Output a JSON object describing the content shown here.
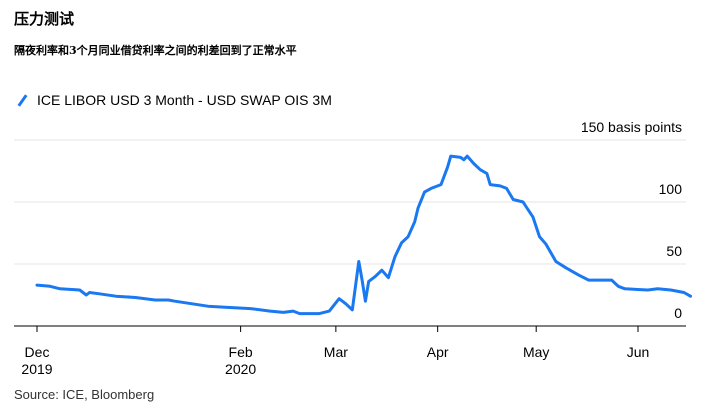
{
  "header": {
    "title": "压力测试",
    "subtitle": "隔夜利率和3个月同业借贷利率之间的利差回到了正常水平"
  },
  "legend": {
    "label": "ICE LIBOR USD 3 Month - USD SWAP OIS 3M"
  },
  "source": "Source: ICE, Bloomberg",
  "colors": {
    "series": "#1a78f0",
    "grid": "#e4e4e4",
    "axis": "#000000"
  },
  "chart_data": {
    "type": "line",
    "title": "",
    "xlabel": "",
    "ylabel": "150 basis points",
    "ylim": [
      0,
      150
    ],
    "y_ticks": [
      0,
      50,
      100,
      150
    ],
    "y_tick_labels": [
      "0",
      "50",
      "100",
      "150 basis points"
    ],
    "x_ticks": [
      {
        "date": "2019-12-01",
        "label": [
          "Dec",
          "2019"
        ]
      },
      {
        "date": "2020-02-01",
        "label": [
          "Feb",
          "2020"
        ]
      },
      {
        "date": "2020-03-01",
        "label": [
          "Mar"
        ]
      },
      {
        "date": "2020-04-01",
        "label": [
          "Apr"
        ]
      },
      {
        "date": "2020-05-01",
        "label": [
          "May"
        ]
      },
      {
        "date": "2020-06-01",
        "label": [
          "Jun"
        ]
      }
    ],
    "grid": true,
    "legend_position": "top-left",
    "series": [
      {
        "name": "ICE LIBOR USD 3 Month - USD SWAP OIS 3M",
        "points": [
          [
            "2019-12-01",
            33
          ],
          [
            "2019-12-05",
            32
          ],
          [
            "2019-12-08",
            30
          ],
          [
            "2019-12-14",
            29
          ],
          [
            "2019-12-16",
            25
          ],
          [
            "2019-12-17",
            27
          ],
          [
            "2019-12-20",
            26
          ],
          [
            "2019-12-25",
            24
          ],
          [
            "2019-12-31",
            23
          ],
          [
            "2020-01-06",
            21
          ],
          [
            "2020-01-10",
            21
          ],
          [
            "2020-01-12",
            20
          ],
          [
            "2020-01-17",
            18
          ],
          [
            "2020-01-22",
            16
          ],
          [
            "2020-01-28",
            15
          ],
          [
            "2020-02-04",
            14
          ],
          [
            "2020-02-10",
            12
          ],
          [
            "2020-02-14",
            11
          ],
          [
            "2020-02-17",
            12
          ],
          [
            "2020-02-19",
            10
          ],
          [
            "2020-02-25",
            10
          ],
          [
            "2020-02-28",
            12
          ],
          [
            "2020-03-02",
            22
          ],
          [
            "2020-03-04",
            18
          ],
          [
            "2020-03-06",
            13
          ],
          [
            "2020-03-08",
            52
          ],
          [
            "2020-03-09",
            37
          ],
          [
            "2020-03-10",
            20
          ],
          [
            "2020-03-11",
            36
          ],
          [
            "2020-03-13",
            40
          ],
          [
            "2020-03-15",
            45
          ],
          [
            "2020-03-17",
            39
          ],
          [
            "2020-03-19",
            56
          ],
          [
            "2020-03-21",
            67
          ],
          [
            "2020-03-23",
            72
          ],
          [
            "2020-03-25",
            84
          ],
          [
            "2020-03-26",
            95
          ],
          [
            "2020-03-28",
            108
          ],
          [
            "2020-03-30",
            111
          ],
          [
            "2020-04-02",
            114
          ],
          [
            "2020-04-04",
            128
          ],
          [
            "2020-04-05",
            137
          ],
          [
            "2020-04-08",
            136
          ],
          [
            "2020-04-09",
            134
          ],
          [
            "2020-04-10",
            137
          ],
          [
            "2020-04-12",
            131
          ],
          [
            "2020-04-14",
            126
          ],
          [
            "2020-04-16",
            123
          ],
          [
            "2020-04-17",
            114
          ],
          [
            "2020-04-20",
            113
          ],
          [
            "2020-04-22",
            111
          ],
          [
            "2020-04-24",
            102
          ],
          [
            "2020-04-27",
            100
          ],
          [
            "2020-04-28",
            96
          ],
          [
            "2020-04-30",
            88
          ],
          [
            "2020-05-02",
            72
          ],
          [
            "2020-05-04",
            66
          ],
          [
            "2020-05-07",
            52
          ],
          [
            "2020-05-10",
            47
          ],
          [
            "2020-05-14",
            41
          ],
          [
            "2020-05-17",
            37
          ],
          [
            "2020-05-24",
            37
          ],
          [
            "2020-05-26",
            32
          ],
          [
            "2020-05-28",
            30
          ],
          [
            "2020-06-04",
            29
          ],
          [
            "2020-06-07",
            30
          ],
          [
            "2020-06-11",
            29
          ],
          [
            "2020-06-15",
            27
          ],
          [
            "2020-06-17",
            24
          ]
        ]
      }
    ]
  }
}
